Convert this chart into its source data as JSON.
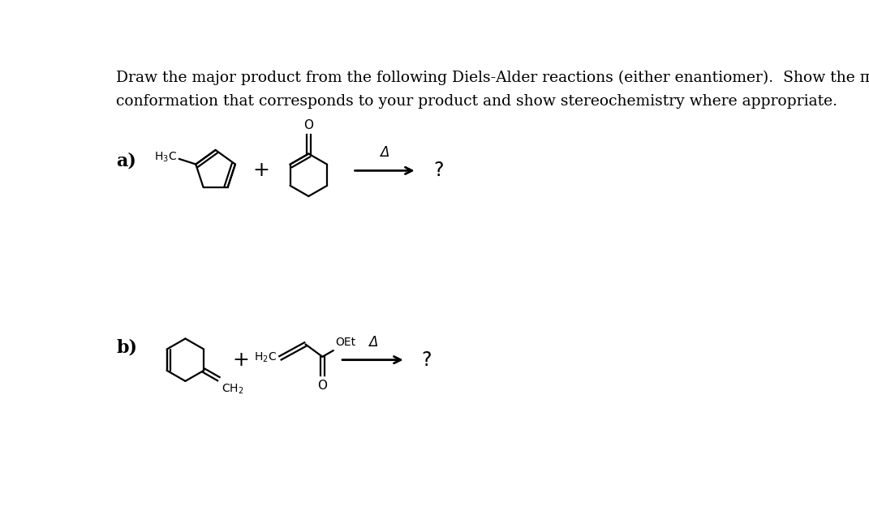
{
  "title_line1": "Draw the major product from the following Diels-Alder reactions (either enantiomer).  Show the π-stacking",
  "title_line2": "conformation that corresponds to your product and show stereochemistry where appropriate.",
  "bg_color": "#ffffff",
  "text_color": "#000000",
  "label_a": "a)",
  "label_b": "b)",
  "question_mark": "?",
  "delta_label": "Δ",
  "font_size_title": 13.5,
  "font_size_label": 16
}
